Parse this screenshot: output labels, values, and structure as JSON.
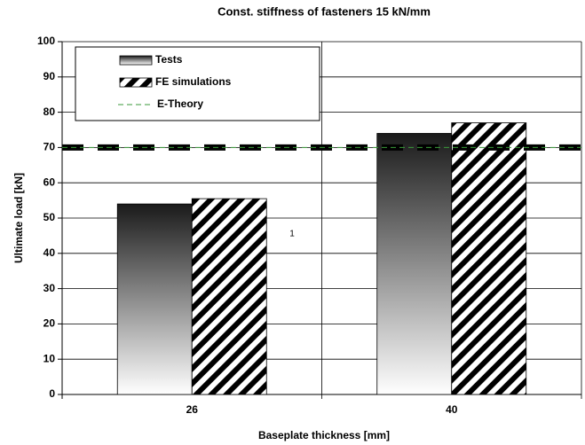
{
  "chart_data": {
    "type": "bar",
    "title": "Const. stiffness of fasteners 15 kN/mm",
    "x_label": "Baseplate thickness [mm]",
    "y_label": "Ultimate load [kN]",
    "categories": [
      "26",
      "40"
    ],
    "series": [
      {
        "name": "Tests",
        "values": [
          54,
          74
        ],
        "fill": "gradient",
        "color": "#1a1a1a"
      },
      {
        "name": "FE simulations",
        "values": [
          55.5,
          77
        ],
        "fill": "hatch",
        "color": "#000000"
      }
    ],
    "reference_line": {
      "name": "E-Theory",
      "value": 70,
      "color": "#3a9a3a"
    },
    "annotation": "1",
    "ylim": [
      0,
      100
    ],
    "yticks": [
      0,
      10,
      20,
      30,
      40,
      50,
      60,
      70,
      80,
      90,
      100
    ],
    "grid": true,
    "legend": "upper left"
  }
}
